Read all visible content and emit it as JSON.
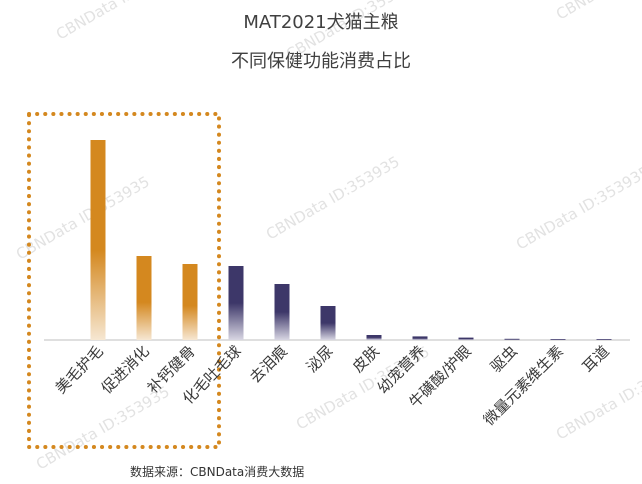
{
  "chart_data": {
    "type": "bar",
    "title": "MAT2021犬猫主粮",
    "subtitle": "不同保健功能消费占比",
    "categories": [
      "美毛护毛",
      "促进消化",
      "补钙健骨",
      "化毛吐毛球",
      "去泪痕",
      "泌尿",
      "皮肤",
      "幼宠营养",
      "牛磺酸/护眼",
      "驱虫",
      "微量元素维生素",
      "耳道"
    ],
    "values": [
      100,
      42,
      38,
      37,
      28,
      17,
      2.5,
      1.8,
      1.2,
      0.6,
      0.2,
      0.1
    ],
    "ylim": [
      0,
      105
    ],
    "highlight_count": 3,
    "colors": {
      "highlight": "#d4881f",
      "normal": "#3d3769",
      "axis": "#bfbfbf",
      "frame": "#d4881f"
    },
    "grid": false,
    "legend": "none"
  },
  "source": "数据来源：CBNData消费大数据",
  "watermark": "CBNData ID:353935"
}
